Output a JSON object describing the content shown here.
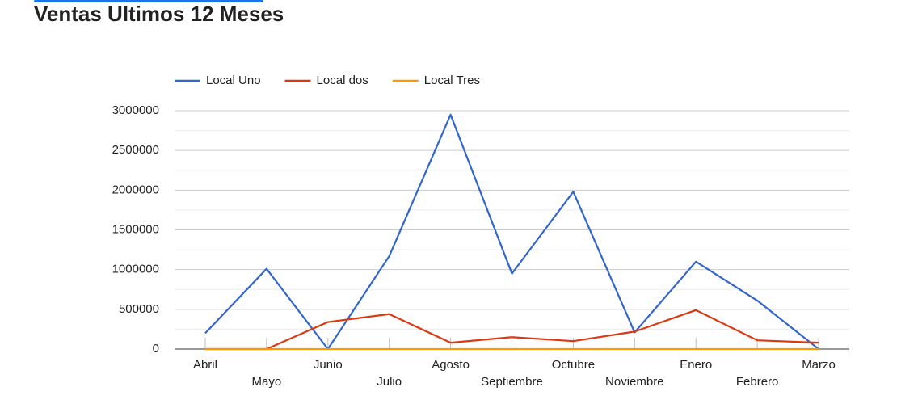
{
  "chart_data": {
    "type": "line",
    "title": "Ventas Ultimos 12 Meses",
    "categories": [
      "Abril",
      "Mayo",
      "Junio",
      "Julio",
      "Agosto",
      "Septiembre",
      "Octubre",
      "Noviembre",
      "Enero",
      "Febrero",
      "Marzo"
    ],
    "series": [
      {
        "name": "Local Uno",
        "color": "#3366cc",
        "values": [
          200000,
          1010000,
          0,
          1170000,
          2950000,
          950000,
          1980000,
          210000,
          1100000,
          610000,
          0
        ]
      },
      {
        "name": "Local dos",
        "color": "#dc3912",
        "values": [
          0,
          0,
          340000,
          440000,
          80000,
          150000,
          100000,
          220000,
          490000,
          110000,
          80000
        ]
      },
      {
        "name": "Local Tres",
        "color": "#ff9900",
        "values": [
          0,
          0,
          0,
          0,
          0,
          0,
          0,
          0,
          0,
          0,
          0
        ]
      }
    ],
    "ylim": [
      0,
      3000000
    ],
    "yticks": [
      0,
      500000,
      1000000,
      1500000,
      2000000,
      2500000,
      3000000
    ],
    "minor_yticks": [
      250000,
      750000,
      1250000,
      1750000,
      2250000,
      2750000
    ],
    "grid": true,
    "legend": "top"
  }
}
